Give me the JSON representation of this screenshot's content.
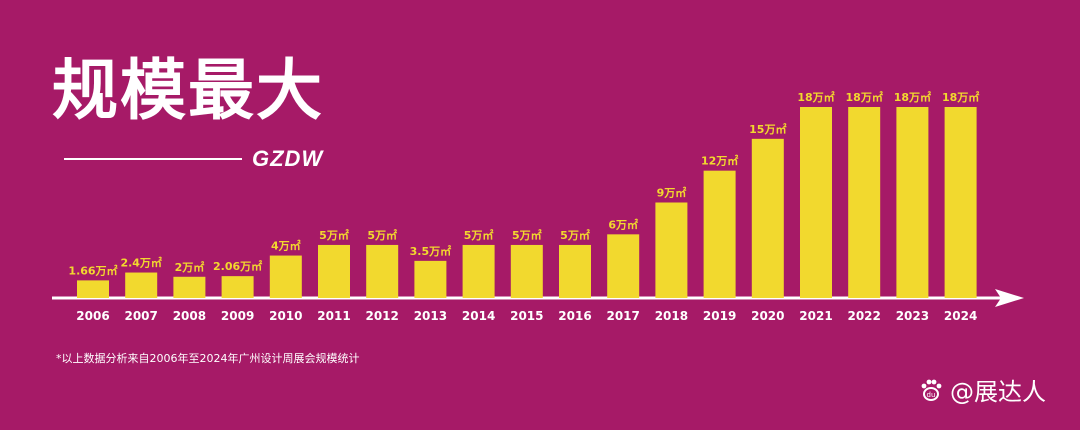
{
  "header": {
    "title": "规模最大",
    "subtitle": "GZDW"
  },
  "footnote": "*以上数据分析来自2006年至2024年广州设计周展会规模统计",
  "watermark": {
    "text": "@展达人",
    "icon": "paw-icon"
  },
  "colors": {
    "background": "#A61A67",
    "bar": "#F2D92E",
    "label": "#F2D92E",
    "axis": "#FFFFFF"
  },
  "chart_data": {
    "type": "bar",
    "title": "规模最大",
    "categories": [
      "2006",
      "2007",
      "2008",
      "2009",
      "2010",
      "2011",
      "2012",
      "2013",
      "2014",
      "2015",
      "2016",
      "2017",
      "2018",
      "2019",
      "2020",
      "2021",
      "2022",
      "2023",
      "2024"
    ],
    "values": [
      1.66,
      2.4,
      2,
      2.06,
      4,
      5,
      5,
      3.5,
      5,
      5,
      5,
      6,
      9,
      12,
      15,
      18,
      18,
      18,
      18
    ],
    "data_labels": [
      "1.66万㎡",
      "2.4万㎡",
      "2万㎡",
      "2.06万㎡",
      "4万㎡",
      "5万㎡",
      "5万㎡",
      "3.5万㎡",
      "5万㎡",
      "5万㎡",
      "5万㎡",
      "6万㎡",
      "9万㎡",
      "12万㎡",
      "15万㎡",
      "18万㎡",
      "18万㎡",
      "18万㎡",
      "18万㎡"
    ],
    "unit": "万㎡",
    "ylim": [
      0,
      18
    ],
    "grid": false,
    "legend": "none"
  }
}
